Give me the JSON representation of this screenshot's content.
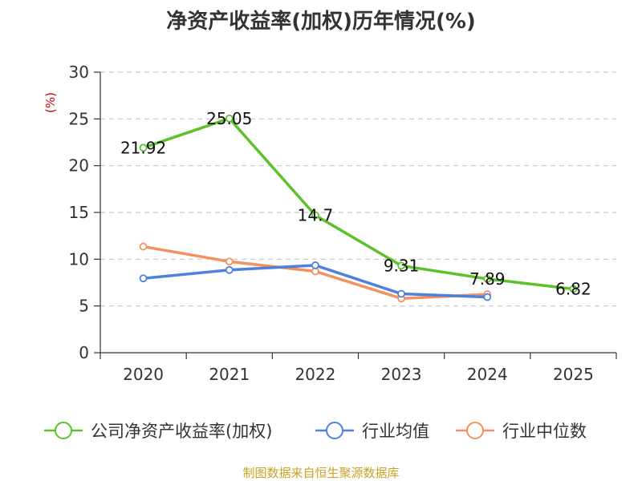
{
  "chart_data": {
    "type": "line",
    "title": "净资产收益率(加权)历年情况(%)",
    "ylabel": "(%)",
    "xlabel": "",
    "categories": [
      "2020",
      "2021",
      "2022",
      "2023",
      "2024",
      "2025"
    ],
    "ylim": [
      0,
      30
    ],
    "yticks": [
      0,
      5,
      10,
      15,
      20,
      25,
      30
    ],
    "grid": true,
    "legend_position": "bottom",
    "series": [
      {
        "name": "公司净资产收益率(加权)",
        "color": "#5cc22a",
        "values": [
          21.92,
          25.05,
          14.7,
          9.31,
          7.89,
          6.82
        ],
        "labels": [
          "21.92",
          "25.05",
          "14.7",
          "9.31",
          "7.89",
          "6.82"
        ]
      },
      {
        "name": "行业均值",
        "color": "#4f80dd",
        "values": [
          7.95,
          8.85,
          9.35,
          6.3,
          5.95,
          null
        ]
      },
      {
        "name": "行业中位数",
        "color": "#f5905f",
        "values": [
          11.35,
          9.75,
          8.7,
          5.8,
          6.25,
          null
        ]
      }
    ]
  },
  "source": "制图数据来自恒生聚源数据库"
}
